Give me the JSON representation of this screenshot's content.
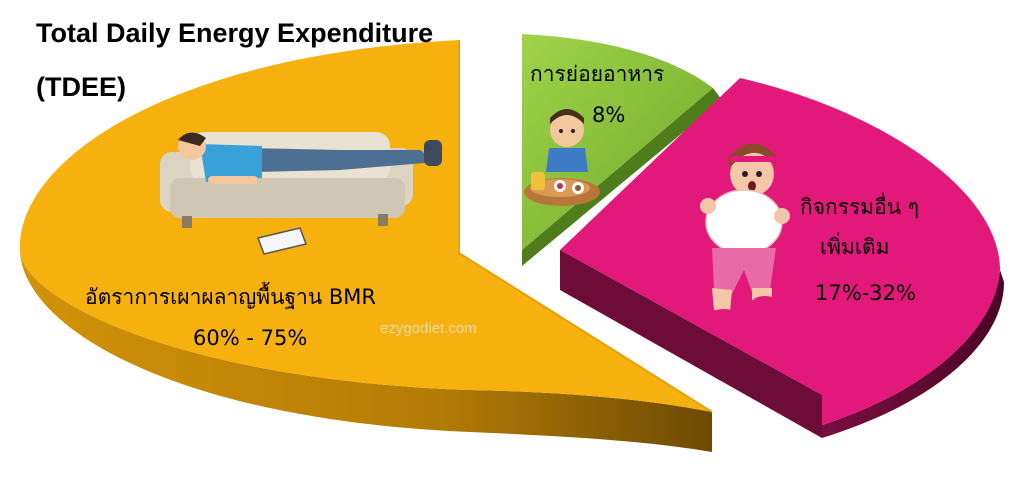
{
  "title_lines": [
    "Total Daily Energy Expenditure",
    "(TDEE)"
  ],
  "watermark": "ezygodiet.com",
  "chart_data": {
    "type": "pie",
    "title": "Total Daily Energy Expenditure (TDEE)",
    "slices": [
      {
        "name": "อัตราการเผาผลาญพื้นฐาน BMR",
        "value_label": "60% - 75%",
        "value_range": [
          60,
          75
        ],
        "color": "#f6b10f",
        "side_color": "#9a6a06",
        "picture": "man-sleeping-on-sofa"
      },
      {
        "name": "การย่อยอาหาร",
        "value_label": "8%",
        "value_range": [
          8,
          8
        ],
        "color": "#8cc43c",
        "side_color": "#4f7d1c",
        "picture": "boy-eating-food"
      },
      {
        "name": "กิจกรรมอื่น ๆ เพิ่มเติม",
        "name_lines": [
          "กิจกรรมอื่น ๆ",
          "เพิ่มเติม"
        ],
        "value_label": "17%-32%",
        "value_range": [
          17,
          32
        ],
        "color": "#e2187a",
        "side_color": "#6e0c38",
        "picture": "woman-jogging"
      }
    ]
  }
}
